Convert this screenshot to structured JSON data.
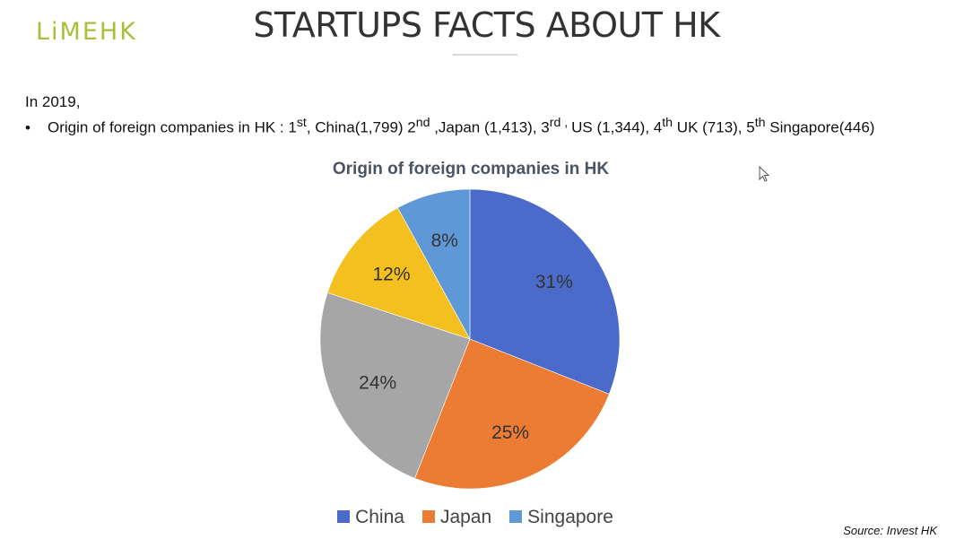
{
  "logo": {
    "text": "LiMEHK"
  },
  "title": "STARTUPS FACTS ABOUT HK",
  "intro": "In 2019,",
  "bullet": {
    "marker": "•",
    "lead": "Origin of foreign companies in HK : 1",
    "r1_sup": "st",
    "r1_text": ", China(1,799) 2",
    "r2_sup": "nd",
    "r2_text": " ,Japan (1,413), 3",
    "r3_sup": "rd , ",
    "r3_text": "US (1,344), 4",
    "r4_sup": "th",
    "r4_text": "  UK (713), 5",
    "r5_sup": "th",
    "r5_text": " Singapore(446)"
  },
  "source": "Source: Invest HK",
  "chart_data": {
    "type": "pie",
    "title": "Origin of foreign companies in HK",
    "slices": [
      {
        "name": "China",
        "label": "31%",
        "value": 31,
        "color": "#4a6bc9"
      },
      {
        "name": "Japan",
        "label": "25%",
        "value": 25,
        "color": "#ec7b33"
      },
      {
        "name": "",
        "label": "24%",
        "value": 24,
        "color": "#a6a6a6"
      },
      {
        "name": "",
        "label": "12%",
        "value": 12,
        "color": "#f4c020"
      },
      {
        "name": "Singapore",
        "label": "8%",
        "value": 8,
        "color": "#5f98d6"
      }
    ],
    "legend": [
      {
        "name": "China",
        "color": "#4a6bc9"
      },
      {
        "name": "Japan",
        "color": "#ec7b33"
      },
      {
        "name": "Singapore",
        "color": "#5f98d6"
      }
    ],
    "legend_position": "bottom"
  }
}
